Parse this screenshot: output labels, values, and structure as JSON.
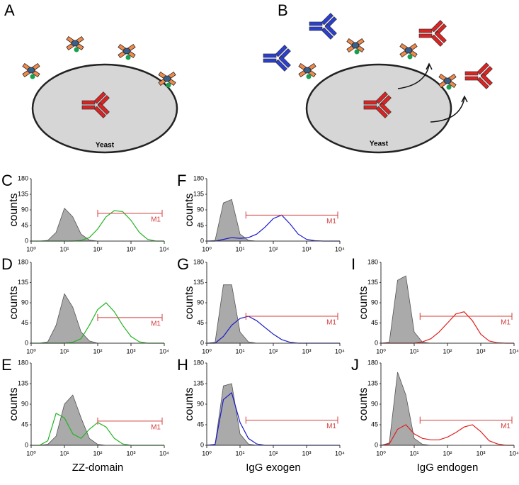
{
  "diagrams": [
    {
      "label": "A",
      "cell": "Yeast"
    },
    {
      "label": "B",
      "cell": "Yeast"
    }
  ],
  "chart_data": [
    {
      "type": "histogram",
      "panel": "C",
      "ylabel": "counts",
      "xscale": "log",
      "xlim": [
        1,
        10000
      ],
      "ylim": [
        0,
        180
      ],
      "xticks": [
        {
          "value": 1,
          "label": "10⁰"
        },
        {
          "value": 10,
          "label": "10¹"
        },
        {
          "value": 100,
          "label": "10²"
        },
        {
          "value": 1000,
          "label": "10³"
        },
        {
          "value": 10000,
          "label": "10⁴"
        }
      ],
      "yticks": [
        0,
        45,
        90,
        135,
        180
      ],
      "x": [
        1,
        1.78,
        3.16,
        5.62,
        10,
        17.8,
        31.6,
        56.2,
        100,
        178,
        316,
        562,
        1000,
        1780,
        3160,
        5620,
        10000
      ],
      "series": [
        {
          "color": "#aaaaaa",
          "values": [
            0,
            0,
            2,
            25,
            95,
            70,
            20,
            3,
            0,
            0,
            0,
            0,
            0,
            0,
            0,
            0,
            0
          ]
        },
        {
          "color": "#22b422",
          "values": [
            0,
            0,
            0,
            0,
            0,
            0,
            2,
            10,
            35,
            70,
            88,
            85,
            60,
            25,
            5,
            0,
            0
          ]
        }
      ],
      "gate": {
        "label": "M1",
        "color": "#d43c3c",
        "range": [
          100,
          10000
        ],
        "y": 80
      }
    },
    {
      "type": "histogram",
      "panel": "D",
      "ylabel": "counts",
      "xscale": "log",
      "xlim": [
        1,
        10000
      ],
      "ylim": [
        0,
        180
      ],
      "xticks": [
        {
          "value": 1,
          "label": "10⁰"
        },
        {
          "value": 10,
          "label": "10¹"
        },
        {
          "value": 100,
          "label": "10²"
        },
        {
          "value": 1000,
          "label": "10³"
        },
        {
          "value": 10000,
          "label": "10⁴"
        }
      ],
      "yticks": [
        0,
        45,
        90,
        135,
        180
      ],
      "x": [
        1,
        1.78,
        3.16,
        5.62,
        10,
        17.8,
        31.6,
        56.2,
        100,
        178,
        316,
        562,
        1000,
        1780,
        3160,
        5620,
        10000
      ],
      "series": [
        {
          "color": "#aaaaaa",
          "values": [
            0,
            0,
            3,
            40,
            110,
            80,
            25,
            5,
            0,
            0,
            0,
            0,
            0,
            0,
            0,
            0,
            0
          ]
        },
        {
          "color": "#22b422",
          "values": [
            0,
            0,
            0,
            0,
            0,
            2,
            10,
            40,
            75,
            90,
            70,
            40,
            15,
            3,
            0,
            0,
            0
          ]
        }
      ],
      "gate": {
        "label": "M1",
        "color": "#d43c3c",
        "range": [
          100,
          10000
        ],
        "y": 57
      }
    },
    {
      "type": "histogram",
      "panel": "E",
      "ylabel": "counts",
      "xlabel": "ZZ-domain",
      "xscale": "log",
      "xlim": [
        1,
        10000
      ],
      "ylim": [
        0,
        180
      ],
      "xticks": [
        {
          "value": 1,
          "label": "10⁰"
        },
        {
          "value": 10,
          "label": "10¹"
        },
        {
          "value": 100,
          "label": "10²"
        },
        {
          "value": 1000,
          "label": "10³"
        },
        {
          "value": 10000,
          "label": "10⁴"
        }
      ],
      "yticks": [
        0,
        45,
        90,
        135,
        180
      ],
      "x": [
        1,
        1.78,
        3.16,
        5.62,
        10,
        17.8,
        31.6,
        56.2,
        100,
        178,
        316,
        562,
        1000,
        1780,
        3160,
        5620,
        10000
      ],
      "series": [
        {
          "color": "#aaaaaa",
          "values": [
            0,
            0,
            2,
            20,
            90,
            110,
            60,
            15,
            2,
            0,
            0,
            0,
            0,
            0,
            0,
            0,
            0
          ]
        },
        {
          "color": "#22b422",
          "values": [
            0,
            0,
            10,
            70,
            60,
            25,
            15,
            35,
            50,
            40,
            15,
            3,
            0,
            0,
            0,
            0,
            0
          ]
        }
      ],
      "gate": {
        "label": "M1",
        "color": "#d43c3c",
        "range": [
          100,
          10000
        ],
        "y": 53
      }
    },
    {
      "type": "histogram",
      "panel": "F",
      "ylabel": "counts",
      "xscale": "log",
      "xlim": [
        1,
        10000
      ],
      "ylim": [
        0,
        180
      ],
      "xticks": [
        {
          "value": 1,
          "label": "10⁰"
        },
        {
          "value": 10,
          "label": "10¹"
        },
        {
          "value": 100,
          "label": "10²"
        },
        {
          "value": 1000,
          "label": "10³"
        },
        {
          "value": 10000,
          "label": "10⁴"
        }
      ],
      "yticks": [
        0,
        45,
        90,
        135,
        180
      ],
      "x": [
        1,
        1.78,
        3.16,
        5.62,
        10,
        17.8,
        31.6,
        56.2,
        100,
        178,
        316,
        562,
        1000,
        1780,
        3160,
        5620,
        10000
      ],
      "series": [
        {
          "color": "#aaaaaa",
          "values": [
            0,
            2,
            110,
            120,
            20,
            2,
            0,
            0,
            0,
            0,
            0,
            0,
            0,
            0,
            0,
            0,
            0
          ]
        },
        {
          "color": "#1a1acc",
          "values": [
            0,
            0,
            5,
            10,
            8,
            10,
            20,
            40,
            65,
            75,
            50,
            20,
            5,
            1,
            0,
            0,
            0
          ]
        }
      ],
      "gate": {
        "label": "M1",
        "color": "#d43c3c",
        "range": [
          15,
          10000
        ],
        "y": 75
      }
    },
    {
      "type": "histogram",
      "panel": "G",
      "ylabel": "counts",
      "xscale": "log",
      "xlim": [
        1,
        10000
      ],
      "ylim": [
        0,
        180
      ],
      "xticks": [
        {
          "value": 1,
          "label": "10⁰"
        },
        {
          "value": 10,
          "label": "10¹"
        },
        {
          "value": 100,
          "label": "10²"
        },
        {
          "value": 1000,
          "label": "10³"
        },
        {
          "value": 10000,
          "label": "10⁴"
        }
      ],
      "yticks": [
        0,
        45,
        90,
        135,
        180
      ],
      "x": [
        1,
        1.78,
        3.16,
        5.62,
        10,
        17.8,
        31.6,
        56.2,
        100,
        178,
        316,
        562,
        1000,
        1780,
        3160,
        5620,
        10000
      ],
      "series": [
        {
          "color": "#aaaaaa",
          "values": [
            0,
            2,
            130,
            130,
            25,
            3,
            0,
            0,
            0,
            0,
            0,
            0,
            0,
            0,
            0,
            0,
            0
          ]
        },
        {
          "color": "#1a1acc",
          "values": [
            0,
            0,
            15,
            40,
            55,
            60,
            50,
            35,
            20,
            8,
            2,
            0,
            0,
            0,
            0,
            0,
            0
          ]
        }
      ],
      "gate": {
        "label": "M1",
        "color": "#d43c3c",
        "range": [
          15,
          10000
        ],
        "y": 60
      }
    },
    {
      "type": "histogram",
      "panel": "H",
      "ylabel": "counts",
      "xlabel": "IgG exogen",
      "xscale": "log",
      "xlim": [
        1,
        10000
      ],
      "ylim": [
        0,
        180
      ],
      "xticks": [
        {
          "value": 1,
          "label": "10⁰"
        },
        {
          "value": 10,
          "label": "10¹"
        },
        {
          "value": 100,
          "label": "10²"
        },
        {
          "value": 1000,
          "label": "10³"
        },
        {
          "value": 10000,
          "label": "10⁴"
        }
      ],
      "yticks": [
        0,
        45,
        90,
        135,
        180
      ],
      "x": [
        1,
        1.78,
        3.16,
        5.62,
        10,
        17.8,
        31.6,
        56.2,
        100,
        178,
        316,
        562,
        1000,
        1780,
        3160,
        5620,
        10000
      ],
      "series": [
        {
          "color": "#aaaaaa",
          "values": [
            0,
            2,
            130,
            135,
            25,
            3,
            0,
            0,
            0,
            0,
            0,
            0,
            0,
            0,
            0,
            0,
            0
          ]
        },
        {
          "color": "#1a1acc",
          "values": [
            0,
            2,
            100,
            115,
            50,
            15,
            3,
            0,
            0,
            0,
            0,
            0,
            0,
            0,
            0,
            0,
            0
          ]
        }
      ],
      "gate": {
        "label": "M1",
        "color": "#d43c3c",
        "range": [
          15,
          10000
        ],
        "y": 55
      }
    },
    {
      "type": "histogram",
      "panel": "I",
      "ylabel": "counts",
      "xscale": "log",
      "xlim": [
        1,
        10000
      ],
      "ylim": [
        0,
        180
      ],
      "xticks": [
        {
          "value": 1,
          "label": "10⁰"
        },
        {
          "value": 10,
          "label": "10¹"
        },
        {
          "value": 100,
          "label": "10²"
        },
        {
          "value": 1000,
          "label": "10³"
        },
        {
          "value": 10000,
          "label": "10⁴"
        }
      ],
      "yticks": [
        0,
        45,
        90,
        135,
        180
      ],
      "x": [
        1,
        1.78,
        3.16,
        5.62,
        10,
        17.8,
        31.6,
        56.2,
        100,
        178,
        316,
        562,
        1000,
        1780,
        3160,
        5620,
        10000
      ],
      "series": [
        {
          "color": "#aaaaaa",
          "values": [
            0,
            2,
            140,
            150,
            25,
            2,
            0,
            0,
            0,
            0,
            0,
            0,
            0,
            0,
            0,
            0,
            0
          ]
        },
        {
          "color": "#e02020",
          "values": [
            0,
            0,
            0,
            0,
            0,
            3,
            10,
            25,
            45,
            65,
            70,
            50,
            20,
            5,
            1,
            0,
            0
          ]
        }
      ],
      "gate": {
        "label": "M1",
        "color": "#d43c3c",
        "range": [
          15,
          10000
        ],
        "y": 60
      }
    },
    {
      "type": "histogram",
      "panel": "J",
      "ylabel": "counts",
      "xlabel": "IgG endogen",
      "xscale": "log",
      "xlim": [
        1,
        10000
      ],
      "ylim": [
        0,
        180
      ],
      "xticks": [
        {
          "value": 1,
          "label": "10⁰"
        },
        {
          "value": 10,
          "label": "10¹"
        },
        {
          "value": 100,
          "label": "10²"
        },
        {
          "value": 1000,
          "label": "10³"
        },
        {
          "value": 10000,
          "label": "10⁴"
        }
      ],
      "yticks": [
        0,
        45,
        90,
        135,
        180
      ],
      "x": [
        1,
        1.78,
        3.16,
        5.62,
        10,
        17.8,
        31.6,
        56.2,
        100,
        178,
        316,
        562,
        1000,
        1780,
        3160,
        5620,
        10000
      ],
      "series": [
        {
          "color": "#aaaaaa",
          "values": [
            0,
            5,
            160,
            110,
            15,
            2,
            0,
            0,
            0,
            0,
            0,
            0,
            0,
            0,
            0,
            0,
            0
          ]
        },
        {
          "color": "#e02020",
          "values": [
            0,
            3,
            35,
            45,
            25,
            15,
            12,
            12,
            18,
            28,
            40,
            45,
            30,
            10,
            3,
            0,
            0
          ]
        }
      ],
      "gate": {
        "label": "M1",
        "color": "#d43c3c",
        "range": [
          15,
          10000
        ],
        "y": 55
      }
    }
  ]
}
